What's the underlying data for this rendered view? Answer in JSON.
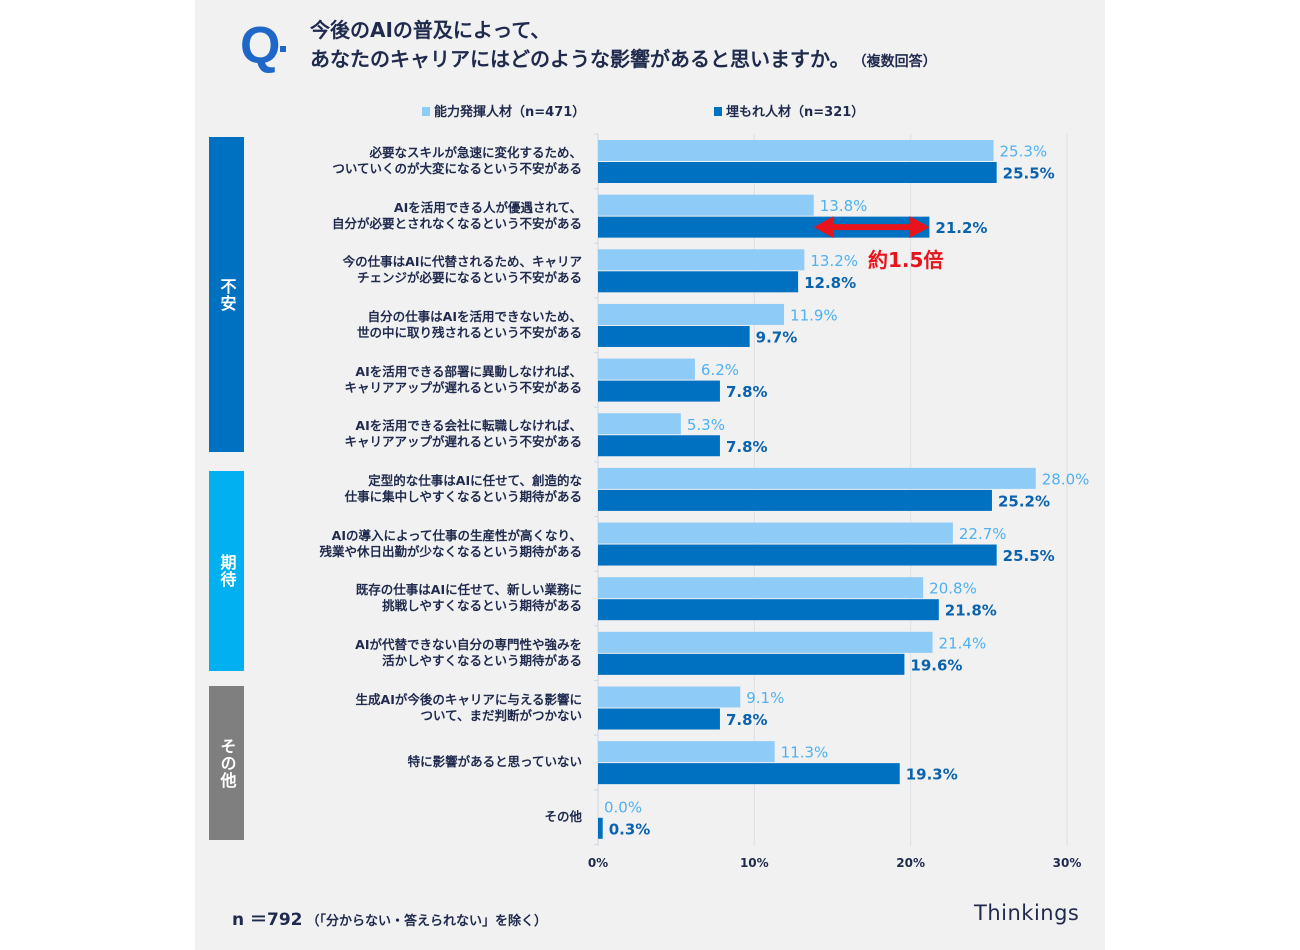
{
  "header": {
    "q_mark": "Q",
    "title_line1": "今後のAIの普及によって、",
    "title_line2": "あなたのキャリアにはどのような影響があると思いますか。",
    "title_note": "（複数回答）"
  },
  "annotation": {
    "label": "約1.5倍",
    "color": "#e8141c",
    "between": [
      "13.8%",
      "21.2%"
    ]
  },
  "footer": {
    "sample": "n ＝792",
    "exclusion": "（「分からない・答えられない」を除く）",
    "brand": "Thinkings"
  },
  "categories_groups": [
    {
      "label": "不安",
      "color": "#0070c0"
    },
    {
      "label": "期待",
      "color": "#00b0f0"
    },
    {
      "label": "その他",
      "color": "#7f7f7f"
    }
  ],
  "chart_data": {
    "type": "bar",
    "orientation": "horizontal",
    "title": "今後のAIの普及によって、あなたのキャリアにはどのような影響があると思いますか。（複数回答）",
    "xlabel": "",
    "ylabel": "",
    "xlim": [
      0,
      30
    ],
    "xticks": [
      "0%",
      "10%",
      "20%",
      "30%"
    ],
    "grid": true,
    "legend_position": "top",
    "categories": [
      "必要なスキルが急速に変化するため、\nついていくのが大変になるという不安がある",
      "AIを活用できる人が優遇されて、\n自分が必要とされなくなるという不安がある",
      "今の仕事はAIに代替されるため、キャリア\nチェンジが必要になるという不安がある",
      "自分の仕事はAIを活用できないため、\n世の中に取り残されるという不安がある",
      "AIを活用できる部署に異動しなければ、\nキャリアアップが遅れるという不安がある",
      "AIを活用できる会社に転職しなければ、\nキャリアアップが遅れるという不安がある",
      "定型的な仕事はAIに任せて、創造的な\n仕事に集中しやすくなるという期待がある",
      "AIの導入によって仕事の生産性が高くなり、\n残業や休日出勤が少なくなるという期待がある",
      "既存の仕事はAIに任せて、新しい業務に\n挑戦しやすくなるという期待がある",
      "AIが代替できない自分の専門性や強みを\n活かしやすくなるという期待がある",
      "生成AIが今後のキャリアに与える影響に\nついて、まだ判断がつかない",
      "特に影響があると思っていない",
      "その他"
    ],
    "category_groups": [
      "不安",
      "不安",
      "不安",
      "不安",
      "不安",
      "不安",
      "期待",
      "期待",
      "期待",
      "期待",
      "その他",
      "その他",
      "その他"
    ],
    "series": [
      {
        "name": "能力発揮人材（n=471）",
        "color": "#8ecbf7",
        "label_color": "#4fb1f0",
        "values": [
          25.3,
          13.8,
          13.2,
          11.9,
          6.2,
          5.3,
          28.0,
          22.7,
          20.8,
          21.4,
          9.1,
          11.3,
          0.0
        ]
      },
      {
        "name": "埋もれ人材（n=321）",
        "color": "#0070c0",
        "label_color": "#0b63ad",
        "values": [
          25.5,
          21.2,
          12.8,
          9.7,
          7.8,
          7.8,
          25.2,
          25.5,
          21.8,
          19.6,
          7.8,
          19.3,
          0.3
        ]
      }
    ]
  }
}
